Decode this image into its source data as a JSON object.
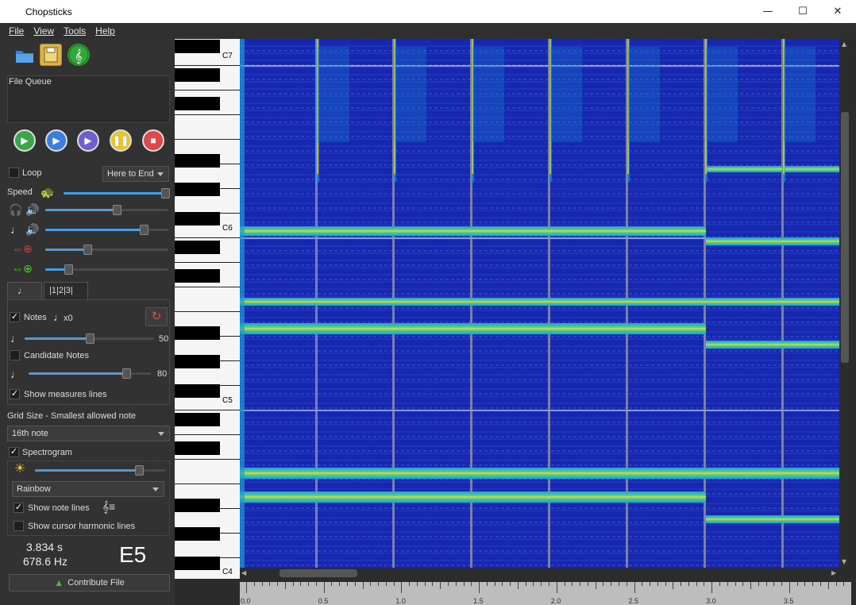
{
  "window": {
    "title": "Chopsticks",
    "min_icon": "—",
    "max_icon": "☐",
    "close_icon": "✕"
  },
  "menu": [
    "File",
    "View",
    "Tools",
    "Help"
  ],
  "left": {
    "queue_label": "File Queue",
    "loop_label": "Loop",
    "loop_checked": false,
    "play_mode": "Here to End",
    "speed_label": "Speed",
    "speed_value": 1.0,
    "headphone_volume": 0.58,
    "note_volume": 0.8,
    "zoom_vertical": 0.34,
    "zoom_horizontal": 0.19,
    "tabs": [
      "",
      "|1|2|3|"
    ],
    "notes_label": "Notes",
    "notes_checked": true,
    "notes_multiplier": "x0",
    "notes_slider_value": "50",
    "notes_slider_fraction": 0.5,
    "candidate_label": "Candidate Notes",
    "candidate_checked": false,
    "candidate_slider_value": "80",
    "candidate_slider_fraction": 0.8,
    "measures_label": "Show measures lines",
    "measures_checked": true,
    "grid_label": "Grid Size - Smallest allowed note",
    "grid_value": "16th note",
    "spectrogram_label": "Spectrogram",
    "spectrogram_checked": true,
    "brightness_fraction": 0.8,
    "colormap": "Rainbow",
    "note_lines_label": "Show note lines",
    "note_lines_checked": true,
    "cursor_harm_label": "Show cursor harmonic lines",
    "cursor_harm_checked": false,
    "time": "3.834 s",
    "freq": "678.6 Hz",
    "note": "E5",
    "contribute_label": "Contribute File"
  },
  "piano": {
    "labels": [
      "C7",
      "C6",
      "C5",
      "C4"
    ]
  },
  "timeline": {
    "ticks": [
      "0.0",
      "0.5",
      "1.0",
      "1.5",
      "2.0",
      "2.5",
      "3.0",
      "3.5"
    ]
  },
  "colors": {
    "accent": "#4a9be0",
    "spec_bg": "#1420a8"
  }
}
